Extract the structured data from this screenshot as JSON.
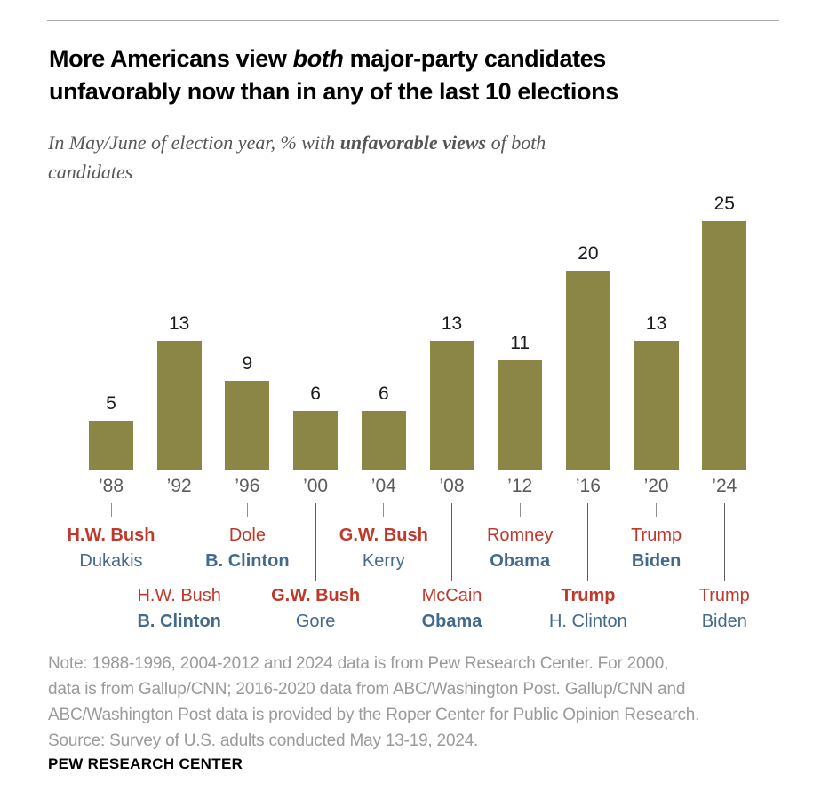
{
  "header": {
    "title_pre": "More Americans view ",
    "title_italic": "both",
    "title_post": " major-party candidates",
    "title_line2": "unfavorably now than in any of the last 10 elections",
    "subtitle_pre": "In May/June of election year, % with ",
    "subtitle_bold": "unfavorable views",
    "subtitle_post": " of both",
    "subtitle_line2": "candidates"
  },
  "colors": {
    "bar": "#8C8646",
    "republican": "#BF392B",
    "democrat": "#43698C",
    "year_label": "#5B5B5D",
    "value_label": "#1A1A1A",
    "note_text": "#9A9A9A"
  },
  "chart_data": {
    "type": "bar",
    "title": "% with unfavorable views of both candidates, May/June of election year",
    "categories": [
      "’88",
      "’92",
      "’96",
      "’00",
      "’04",
      "’08",
      "’12",
      "’16",
      "’20",
      "’24"
    ],
    "values": [
      5,
      13,
      9,
      6,
      6,
      13,
      11,
      20,
      13,
      25
    ],
    "xlabel": "",
    "ylabel": "",
    "ylim": [
      0,
      27
    ],
    "grid": false,
    "legend": "none",
    "elections": [
      {
        "year": "’88",
        "value": 5,
        "label_level": "upper",
        "rep": {
          "name": "H.W. Bush",
          "bold": true
        },
        "dem": {
          "name": "Dukakis",
          "bold": false
        }
      },
      {
        "year": "’92",
        "value": 13,
        "label_level": "lower",
        "rep": {
          "name": "H.W. Bush",
          "bold": false
        },
        "dem": {
          "name": "B. Clinton",
          "bold": true
        }
      },
      {
        "year": "’96",
        "value": 9,
        "label_level": "upper",
        "rep": {
          "name": "Dole",
          "bold": false
        },
        "dem": {
          "name": "B. Clinton",
          "bold": true
        }
      },
      {
        "year": "’00",
        "value": 6,
        "label_level": "lower",
        "rep": {
          "name": "G.W. Bush",
          "bold": true
        },
        "dem": {
          "name": "Gore",
          "bold": false
        }
      },
      {
        "year": "’04",
        "value": 6,
        "label_level": "upper",
        "rep": {
          "name": "G.W. Bush",
          "bold": true
        },
        "dem": {
          "name": "Kerry",
          "bold": false
        }
      },
      {
        "year": "’08",
        "value": 13,
        "label_level": "lower",
        "rep": {
          "name": "McCain",
          "bold": false
        },
        "dem": {
          "name": "Obama",
          "bold": true
        }
      },
      {
        "year": "’12",
        "value": 11,
        "label_level": "upper",
        "rep": {
          "name": "Romney",
          "bold": false
        },
        "dem": {
          "name": "Obama",
          "bold": true
        }
      },
      {
        "year": "’16",
        "value": 20,
        "label_level": "lower",
        "rep": {
          "name": "Trump",
          "bold": true
        },
        "dem": {
          "name": "H. Clinton",
          "bold": false
        }
      },
      {
        "year": "’20",
        "value": 13,
        "label_level": "upper",
        "rep": {
          "name": "Trump",
          "bold": false
        },
        "dem": {
          "name": "Biden",
          "bold": true
        }
      },
      {
        "year": "’24",
        "value": 25,
        "label_level": "lower",
        "rep": {
          "name": "Trump",
          "bold": false
        },
        "dem": {
          "name": "Biden",
          "bold": false
        }
      }
    ]
  },
  "footer": {
    "note_lines": [
      "Note: 1988-1996, 2004-2012 and 2024 data is from Pew Research Center. For 2000,",
      "data is from Gallup/CNN; 2016-2020 data from ABC/Washington Post. Gallup/CNN and",
      "ABC/Washington Post data is provided by the Roper Center for Public Opinion Research.",
      "Source: Survey of U.S. adults conducted May 13-19, 2024."
    ],
    "brand": "PEW RESEARCH CENTER"
  }
}
